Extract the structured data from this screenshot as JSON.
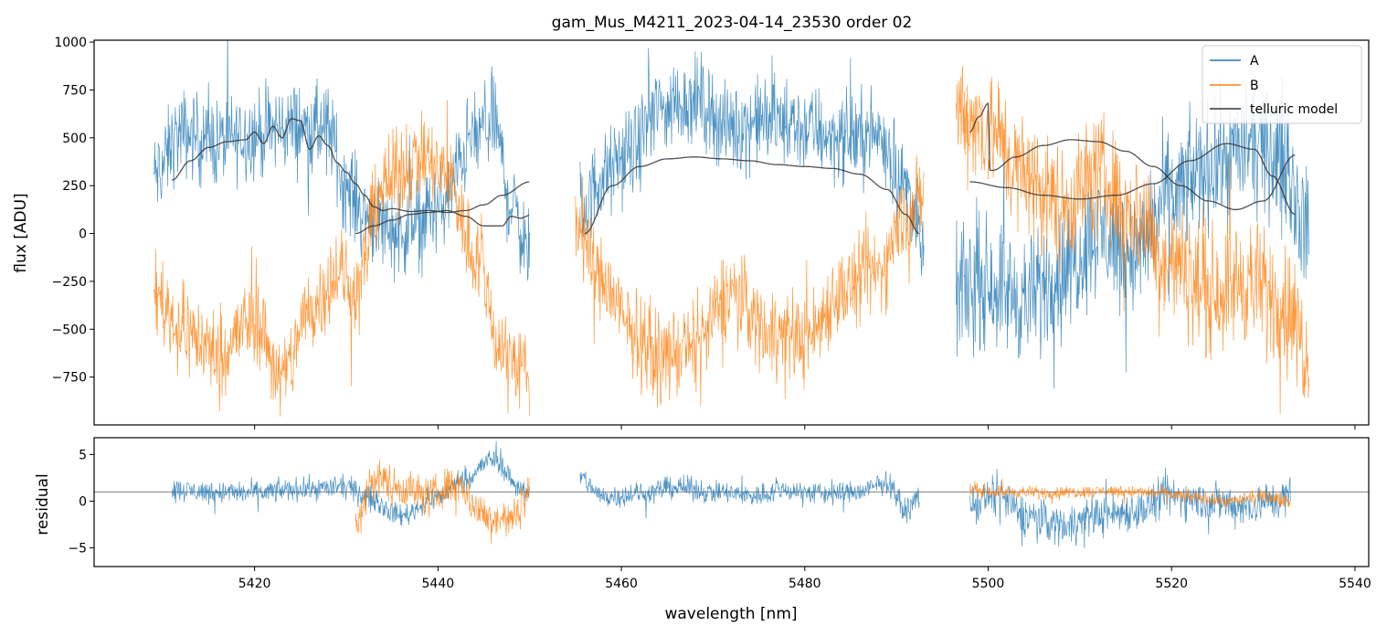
{
  "chart_data": [
    {
      "panel": "top",
      "type": "line",
      "title": "gam_Mus_M4211_2023-04-14_23530  order 02",
      "xlabel": "",
      "ylabel": "flux [ADU]",
      "xlim": [
        5402.5,
        5541.5
      ],
      "ylim": [
        -1000,
        1010
      ],
      "x_ticks": [
        5420,
        5440,
        5460,
        5480,
        5500,
        5520,
        5540
      ],
      "y_ticks": [
        -750,
        -500,
        -250,
        0,
        250,
        500,
        750,
        1000
      ],
      "y_tick_labels": [
        "−750",
        "−500",
        "−250",
        "0",
        "250",
        "500",
        "750",
        "1000"
      ],
      "legend": {
        "placement": "upper right",
        "entries": [
          {
            "label": "A",
            "color": "#1f77b4"
          },
          {
            "label": "B",
            "color": "#ff7f0e"
          },
          {
            "label": "telluric model",
            "color": "#333333"
          }
        ]
      },
      "series": [
        {
          "name": "A",
          "color": "#1f77b4",
          "style": "noisy",
          "segments": [
            {
              "x": [
                5409,
                5412,
                5416,
                5420,
                5424,
                5428,
                5430,
                5432,
                5436,
                5440,
                5444,
                5446,
                5448,
                5450
              ],
              "y": [
                300,
                520,
                480,
                520,
                560,
                540,
                250,
                100,
                10,
                130,
                500,
                600,
                150,
                -100
              ],
              "amp": 170
            },
            {
              "x": [
                5455.5,
                5458,
                5461,
                5464,
                5468,
                5472,
                5476,
                5480,
                5484,
                5488,
                5491,
                5493
              ],
              "y": [
                100,
                300,
                420,
                650,
                700,
                550,
                600,
                550,
                500,
                520,
                250,
                -100
              ],
              "amp": 170
            },
            {
              "x": [
                5496.5,
                5500,
                5504,
                5508,
                5512,
                5516,
                5520,
                5524,
                5528,
                5532,
                5535
              ],
              "y": [
                -300,
                -250,
                -350,
                -200,
                0,
                -100,
                200,
                350,
                450,
                400,
                0
              ],
              "amp": 240
            }
          ]
        },
        {
          "name": "B",
          "color": "#ff7f0e",
          "style": "noisy",
          "segments": [
            {
              "x": [
                5409,
                5412,
                5416,
                5420,
                5423,
                5426,
                5429,
                5431,
                5434,
                5438,
                5441,
                5444,
                5447,
                5450
              ],
              "y": [
                -300,
                -500,
                -620,
                -450,
                -750,
                -400,
                -200,
                -300,
                250,
                400,
                300,
                -100,
                -600,
                -750
              ],
              "amp": 170
            },
            {
              "x": [
                5455,
                5458,
                5461,
                5464,
                5468,
                5472,
                5476,
                5480,
                5484,
                5488,
                5491,
                5493
              ],
              "y": [
                50,
                -250,
                -500,
                -650,
                -600,
                -300,
                -500,
                -550,
                -300,
                -200,
                100,
                200
              ],
              "amp": 170
            },
            {
              "x": [
                5496.5,
                5500,
                5504,
                5508,
                5512,
                5516,
                5520,
                5524,
                5528,
                5532,
                5535
              ],
              "y": [
                650,
                550,
                300,
                150,
                300,
                100,
                -150,
                -300,
                -250,
                -350,
                -600
              ],
              "amp": 240
            }
          ]
        },
        {
          "name": "telluric model",
          "color": "#333333",
          "style": "smooth",
          "segments": [
            {
              "x": [
                5411,
                5413,
                5415,
                5417,
                5419,
                5420,
                5421,
                5422,
                5423,
                5424,
                5425,
                5426,
                5427,
                5428,
                5429,
                5430,
                5431,
                5432,
                5433,
                5434,
                5435,
                5437,
                5439,
                5441,
                5443,
                5445,
                5447,
                5450
              ],
              "y": [
                280,
                380,
                450,
                480,
                490,
                530,
                470,
                560,
                500,
                600,
                590,
                440,
                510,
                460,
                370,
                320,
                260,
                200,
                140,
                120,
                130,
                115,
                120,
                110,
                120,
                150,
                200,
                270
              ]
            },
            {
              "x": [
                5431,
                5433,
                5435,
                5437,
                5439,
                5441,
                5443,
                5445,
                5447,
                5448,
                5449,
                5450
              ],
              "y": [
                0,
                40,
                70,
                100,
                110,
                120,
                90,
                40,
                40,
                90,
                80,
                95
              ]
            },
            {
              "x": [
                5456,
                5459,
                5462,
                5465,
                5468,
                5471,
                5474,
                5477,
                5480,
                5483,
                5486,
                5489,
                5491,
                5492.5
              ],
              "y": [
                0,
                250,
                350,
                390,
                400,
                390,
                380,
                360,
                350,
                340,
                310,
                230,
                100,
                0
              ]
            },
            {
              "x": [
                5498,
                5499,
                5500,
                5500.2,
                5500.5,
                5503,
                5506,
                5509,
                5512,
                5515,
                5518,
                5521,
                5524,
                5527,
                5530,
                5533.5
              ],
              "y": [
                530,
                610,
                680,
                330,
                330,
                400,
                460,
                490,
                480,
                430,
                350,
                250,
                170,
                125,
                170,
                410
              ]
            },
            {
              "x": [
                5498,
                5502,
                5506,
                5510,
                5514,
                5518,
                5522,
                5526,
                5529,
                5531,
                5533.5
              ],
              "y": [
                270,
                240,
                200,
                180,
                200,
                260,
                380,
                470,
                440,
                300,
                100
              ]
            }
          ]
        }
      ]
    },
    {
      "panel": "bottom",
      "type": "line",
      "title": "",
      "xlabel": "wavelength [nm]",
      "ylabel": "residual",
      "xlim": [
        5402.5,
        5541.5
      ],
      "ylim": [
        -7,
        6.8
      ],
      "x_ticks": [
        5420,
        5440,
        5460,
        5480,
        5500,
        5520,
        5540
      ],
      "x_tick_labels": [
        "5420",
        "5440",
        "5460",
        "5480",
        "5500",
        "5520",
        "5540"
      ],
      "y_ticks": [
        -5,
        0,
        5
      ],
      "y_tick_labels": [
        "−5",
        "0",
        "5"
      ],
      "reference_line": 1.0,
      "series": [
        {
          "name": "A",
          "color": "#1f77b4",
          "style": "noisy",
          "segments": [
            {
              "x": [
                5411,
                5415,
                5420,
                5425,
                5430,
                5432,
                5436,
                5440,
                5443,
                5446,
                5449,
                5450
              ],
              "y": [
                1.2,
                1.0,
                0.9,
                1.3,
                1.5,
                0.5,
                -1.5,
                0.5,
                2.5,
                4.5,
                1.5,
                0.5
              ],
              "amp": 0.9
            },
            {
              "x": [
                5455.5,
                5458,
                5462,
                5466,
                5470,
                5474,
                5478,
                5482,
                5486,
                5489,
                5491,
                5492.5
              ],
              "y": [
                2.5,
                0.5,
                0.8,
                1.5,
                1.0,
                0.6,
                1.2,
                0.8,
                1.0,
                2.0,
                -1.0,
                0.5
              ],
              "amp": 0.9
            },
            {
              "x": [
                5498,
                5501,
                5504,
                5508,
                5512,
                5516,
                5520,
                5524,
                5528,
                5531,
                5533
              ],
              "y": [
                -0.5,
                0.5,
                -1.5,
                -2.5,
                -1.5,
                -1.0,
                0.5,
                0.0,
                -0.5,
                0.0,
                0.5
              ],
              "amp": 1.6
            }
          ]
        },
        {
          "name": "B",
          "color": "#ff7f0e",
          "style": "noisy",
          "segments": [
            {
              "x": [
                5431,
                5433,
                5436,
                5439,
                5442,
                5445,
                5448,
                5450
              ],
              "y": [
                -2.5,
                2.5,
                1.5,
                0.5,
                2.0,
                -1.5,
                -2.0,
                1.0
              ],
              "amp": 1.6
            },
            {
              "x": [
                5498,
                5502,
                5506,
                5510,
                5514,
                5518,
                5522,
                5526,
                5530,
                5533
              ],
              "y": [
                1.2,
                1.0,
                0.9,
                1.0,
                1.1,
                0.9,
                0.5,
                0.0,
                0.5,
                0.0
              ],
              "amp": 0.5
            }
          ]
        }
      ]
    }
  ]
}
